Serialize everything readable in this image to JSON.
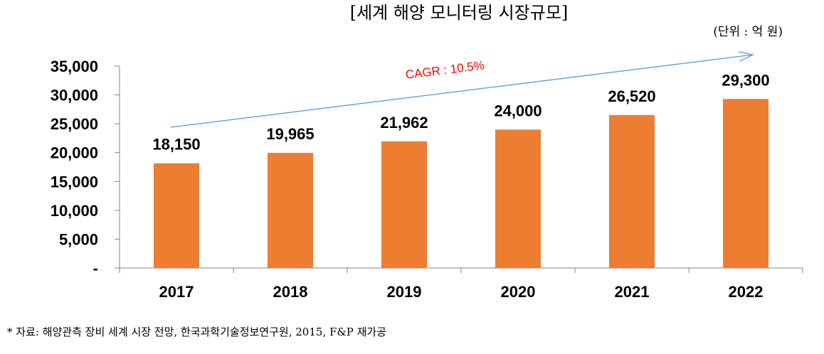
{
  "chart_data": {
    "type": "bar",
    "title": "[세계 해양 모니터링 시장규모]",
    "unit_note": "(단위 : 억 원)",
    "categories": [
      "2017",
      "2018",
      "2019",
      "2020",
      "2021",
      "2022"
    ],
    "values": [
      18150,
      19965,
      21962,
      24000,
      26520,
      29300
    ],
    "data_labels": [
      "18,150",
      "19,965",
      "21,962",
      "24,000",
      "26,520",
      "29,300"
    ],
    "ylim": [
      0,
      35000
    ],
    "yticks": [
      0,
      5000,
      10000,
      15000,
      20000,
      25000,
      30000,
      35000
    ],
    "ytick_labels": [
      "-",
      "5,000",
      "10,000",
      "15,000",
      "20,000",
      "25,000",
      "30,000",
      "35,000"
    ],
    "grid": false,
    "legend": "none",
    "annotation": {
      "text": "CAGR : 10.5%",
      "kind": "arrow",
      "from_category": "2017",
      "to_category": "2022"
    },
    "source_note": "* 자료: 해양관측 장비 세계 시장 전망, 한국과학기술정보연구원, 2015, F&P 재가공"
  },
  "colors": {
    "bar": "#ED7D31",
    "axis": "#868686",
    "arrow": "#5B9BD5",
    "annotation_text": "#FF0000"
  }
}
